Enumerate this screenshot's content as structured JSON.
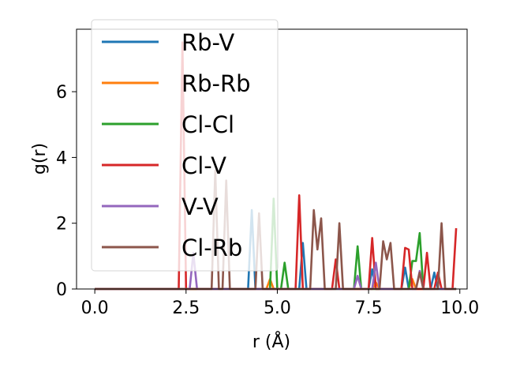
{
  "chart_data": {
    "type": "line",
    "xlabel": "r (Å)",
    "ylabel": "g(r)",
    "xlim": [
      -0.5,
      10.2
    ],
    "ylim": [
      0,
      7.9
    ],
    "xticks": [
      "0.0",
      "2.5",
      "5.0",
      "7.5",
      "10.0"
    ],
    "xtick_values": [
      0,
      2.5,
      5,
      7.5,
      10
    ],
    "yticks": [
      "0",
      "2",
      "4",
      "6"
    ],
    "ytick_values": [
      0,
      2,
      4,
      6
    ],
    "legend_placement": "upper-left",
    "grid": false,
    "series": [
      {
        "name": "Rb-V",
        "color": "#1f77b4",
        "points": [
          [
            0,
            0
          ],
          [
            4.2,
            0
          ],
          [
            4.3,
            2.4
          ],
          [
            4.4,
            0
          ],
          [
            5.6,
            0
          ],
          [
            5.7,
            1.4
          ],
          [
            5.8,
            0
          ],
          [
            7.5,
            0
          ],
          [
            7.6,
            0.6
          ],
          [
            7.7,
            0
          ],
          [
            8.4,
            0
          ],
          [
            8.5,
            0.65
          ],
          [
            8.6,
            0
          ],
          [
            9.2,
            0
          ],
          [
            9.3,
            0.5
          ],
          [
            9.4,
            0
          ],
          [
            9.9,
            0
          ]
        ]
      },
      {
        "name": "Rb-Rb",
        "color": "#ff7f0e",
        "points": [
          [
            0,
            0
          ],
          [
            4.7,
            0
          ],
          [
            4.8,
            0.3
          ],
          [
            4.9,
            0
          ],
          [
            7.6,
            0
          ],
          [
            7.7,
            0.2
          ],
          [
            7.8,
            0
          ],
          [
            8.6,
            0
          ],
          [
            8.7,
            0.3
          ],
          [
            8.8,
            0
          ],
          [
            9.9,
            0
          ]
        ]
      },
      {
        "name": "Cl-Cl",
        "color": "#2ca02c",
        "points": [
          [
            0,
            0
          ],
          [
            4.8,
            0
          ],
          [
            4.9,
            2.75
          ],
          [
            5.0,
            0
          ],
          [
            5.1,
            0
          ],
          [
            5.2,
            0.8
          ],
          [
            5.3,
            0
          ],
          [
            7.1,
            0
          ],
          [
            7.2,
            1.3
          ],
          [
            7.3,
            0
          ],
          [
            8.6,
            0
          ],
          [
            8.7,
            0.85
          ],
          [
            8.8,
            0.85
          ],
          [
            8.9,
            1.7
          ],
          [
            9.0,
            0
          ],
          [
            9.9,
            0
          ]
        ]
      },
      {
        "name": "Cl-V",
        "color": "#d62728",
        "points": [
          [
            0,
            0
          ],
          [
            2.3,
            0
          ],
          [
            2.4,
            7.5
          ],
          [
            2.5,
            0
          ],
          [
            5.5,
            0
          ],
          [
            5.6,
            2.85
          ],
          [
            5.7,
            0
          ],
          [
            6.5,
            0
          ],
          [
            6.6,
            0.9
          ],
          [
            6.7,
            0
          ],
          [
            7.5,
            0
          ],
          [
            7.6,
            1.55
          ],
          [
            7.7,
            0
          ],
          [
            8.4,
            0
          ],
          [
            8.5,
            1.25
          ],
          [
            8.6,
            1.2
          ],
          [
            8.7,
            0
          ],
          [
            9.0,
            0
          ],
          [
            9.1,
            1.1
          ],
          [
            9.2,
            0
          ],
          [
            9.3,
            0
          ],
          [
            9.4,
            0.5
          ],
          [
            9.5,
            0
          ],
          [
            9.8,
            0
          ],
          [
            9.9,
            1.85
          ]
        ]
      },
      {
        "name": "V-V",
        "color": "#9467bd",
        "points": [
          [
            0,
            0
          ],
          [
            2.6,
            0
          ],
          [
            2.7,
            1.1
          ],
          [
            2.8,
            0
          ],
          [
            7.1,
            0
          ],
          [
            7.2,
            0.4
          ],
          [
            7.3,
            0
          ],
          [
            7.6,
            0
          ],
          [
            7.7,
            0.8
          ],
          [
            7.8,
            0
          ],
          [
            8.8,
            0
          ],
          [
            8.9,
            0.55
          ],
          [
            9.0,
            0
          ],
          [
            9.9,
            0
          ]
        ]
      },
      {
        "name": "Cl-Rb",
        "color": "#8c564b",
        "points": [
          [
            0,
            0
          ],
          [
            3.2,
            0
          ],
          [
            3.3,
            3.6
          ],
          [
            3.4,
            0
          ],
          [
            3.5,
            0
          ],
          [
            3.6,
            3.3
          ],
          [
            3.7,
            0
          ],
          [
            4.4,
            0
          ],
          [
            4.5,
            2.3
          ],
          [
            4.6,
            0
          ],
          [
            5.9,
            0
          ],
          [
            6.0,
            2.4
          ],
          [
            6.1,
            1.2
          ],
          [
            6.2,
            2.15
          ],
          [
            6.3,
            0
          ],
          [
            6.6,
            0
          ],
          [
            6.7,
            2.0
          ],
          [
            6.8,
            0
          ],
          [
            7.8,
            0
          ],
          [
            7.9,
            1.45
          ],
          [
            8.0,
            0.9
          ],
          [
            8.1,
            1.4
          ],
          [
            8.2,
            0
          ],
          [
            8.8,
            0
          ],
          [
            8.9,
            0.5
          ],
          [
            9.0,
            0
          ],
          [
            9.4,
            0
          ],
          [
            9.5,
            2.0
          ],
          [
            9.6,
            0
          ],
          [
            9.9,
            0
          ]
        ]
      }
    ]
  }
}
